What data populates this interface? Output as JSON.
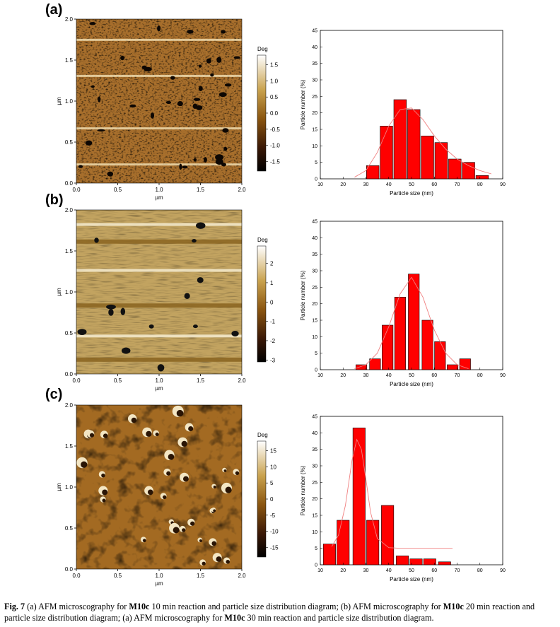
{
  "panels": [
    {
      "label": "(a)",
      "afm": {
        "unit_label": "µm",
        "y_ticks": [
          "2.0",
          "1.5",
          "1.0",
          "0.5",
          "0.0"
        ],
        "x_ticks": [
          "0.0",
          "0.5",
          "1.0",
          "1.5",
          "2.0"
        ],
        "colorbar_title": "Deg",
        "colorbar_ticks": [
          "1.5",
          "1.0",
          "0.5",
          "0.0",
          "-0.5",
          "-1.0",
          "-1.5"
        ],
        "colorbar_range": [
          -1.8,
          1.8
        ],
        "texture": "fine-dark-pores"
      }
    },
    {
      "label": "(b)",
      "afm": {
        "unit_label": "µm",
        "y_ticks": [
          "2.0",
          "1.5",
          "1.0",
          "0.5",
          "0.0"
        ],
        "x_ticks": [
          "0.0",
          "0.5",
          "1.0",
          "1.5",
          "2.0"
        ],
        "colorbar_title": "Deg",
        "colorbar_ticks": [
          "2",
          "1",
          "0",
          "-1",
          "-2",
          "-3"
        ],
        "colorbar_range": [
          -3.1,
          2.9
        ],
        "texture": "smooth-streaks"
      }
    },
    {
      "label": "(c)",
      "afm": {
        "unit_label": "µm",
        "y_ticks": [
          "2.0",
          "1.5",
          "1.0",
          "0.5",
          "0.0"
        ],
        "x_ticks": [
          "0.0",
          "0.5",
          "1.0",
          "1.5",
          "2.0"
        ],
        "colorbar_title": "Deg",
        "colorbar_ticks": [
          "15",
          "10",
          "5",
          "0",
          "-5",
          "-10",
          "-15"
        ],
        "colorbar_range": [
          -18,
          18
        ],
        "texture": "rough-particles"
      }
    }
  ],
  "chart_data": [
    {
      "type": "bar",
      "title": "",
      "xlabel": "Particle size (nm)",
      "ylabel": "Particle number (%)",
      "xlim": [
        10,
        90
      ],
      "ylim": [
        0,
        45
      ],
      "x_ticks": [
        "10",
        "20",
        "30",
        "40",
        "50",
        "60",
        "70",
        "80",
        "90"
      ],
      "y_ticks": [
        "0",
        "5",
        "10",
        "15",
        "20",
        "25",
        "30",
        "35",
        "40",
        "45"
      ],
      "bar_width": 5.5,
      "x": [
        33,
        39,
        45,
        51,
        57,
        63,
        69,
        75,
        81
      ],
      "values": [
        4,
        16,
        24,
        21,
        13,
        11,
        6,
        5,
        1
      ],
      "fit_x": [
        25,
        30,
        35,
        40,
        45,
        50,
        55,
        60,
        65,
        70,
        75,
        80,
        85
      ],
      "fit_y": [
        0.5,
        2.5,
        8,
        16,
        21,
        21.5,
        18,
        13,
        9,
        6,
        4,
        2.5,
        1.5
      ],
      "fit_color": "#f08080",
      "bar_color": "#ff0000"
    },
    {
      "type": "bar",
      "title": "",
      "xlabel": "Particle size (nm)",
      "ylabel": "Particle number (%)",
      "xlim": [
        10,
        90
      ],
      "ylim": [
        0,
        45
      ],
      "x_ticks": [
        "10",
        "20",
        "30",
        "40",
        "50",
        "60",
        "70",
        "80",
        "90"
      ],
      "y_ticks": [
        "0",
        "5",
        "10",
        "15",
        "20",
        "25",
        "30",
        "35",
        "40",
        "45"
      ],
      "bar_width": 4.8,
      "x": [
        28,
        34,
        39.5,
        45,
        51,
        57,
        62.5,
        68,
        73.5
      ],
      "values": [
        1.5,
        3.3,
        13.5,
        22,
        29,
        15,
        8.5,
        1.5,
        3.3
      ],
      "fit_x": [
        25,
        30,
        35,
        40,
        45,
        50,
        55,
        60,
        65,
        70,
        75
      ],
      "fit_y": [
        0.3,
        1.5,
        5,
        13,
        23,
        28,
        22,
        12,
        5,
        1.5,
        0.3
      ],
      "fit_color": "#f08080",
      "bar_color": "#ff0000"
    },
    {
      "type": "bar",
      "title": "",
      "xlabel": "Particle size (nm)",
      "ylabel": "Particle number (%)",
      "xlim": [
        10,
        90
      ],
      "ylim": [
        0,
        45
      ],
      "x_ticks": [
        "10",
        "20",
        "30",
        "40",
        "50",
        "60",
        "70",
        "80",
        "90"
      ],
      "y_ticks": [
        "0",
        "5",
        "10",
        "15",
        "20",
        "25",
        "30",
        "35",
        "40",
        "45"
      ],
      "bar_width": 5.4,
      "x": [
        14,
        20,
        27,
        33,
        39.5,
        46,
        52,
        58,
        64.5
      ],
      "values": [
        6.3,
        13.5,
        41.5,
        13.5,
        18,
        2.7,
        1.8,
        1.8,
        0.9
      ],
      "fit_x": [
        15,
        18,
        21,
        24,
        26,
        28,
        30,
        32,
        35,
        40,
        45,
        50,
        60,
        68
      ],
      "fit_y": [
        5.5,
        9,
        18,
        32,
        38,
        35,
        26,
        16,
        8,
        5.2,
        5,
        5,
        5,
        5
      ],
      "fit_color": "#f08080",
      "bar_color": "#ff0000"
    }
  ],
  "caption": {
    "fig_label": "Fig. 7",
    "parts": [
      {
        "text": " (a) AFM microscography for ",
        "bold": false
      },
      {
        "text": "M10c",
        "bold": true
      },
      {
        "text": " 10 min reaction and particle size distribution diagram; (b) AFM microscography for ",
        "bold": false
      },
      {
        "text": "M10c",
        "bold": true
      },
      {
        "text": " 20 min reaction and particle size distribution diagram; (a) AFM microscography for ",
        "bold": false
      },
      {
        "text": "M10c",
        "bold": true
      },
      {
        "text": " 30 min reaction and particle size distribution diagram.",
        "bold": false
      }
    ]
  }
}
